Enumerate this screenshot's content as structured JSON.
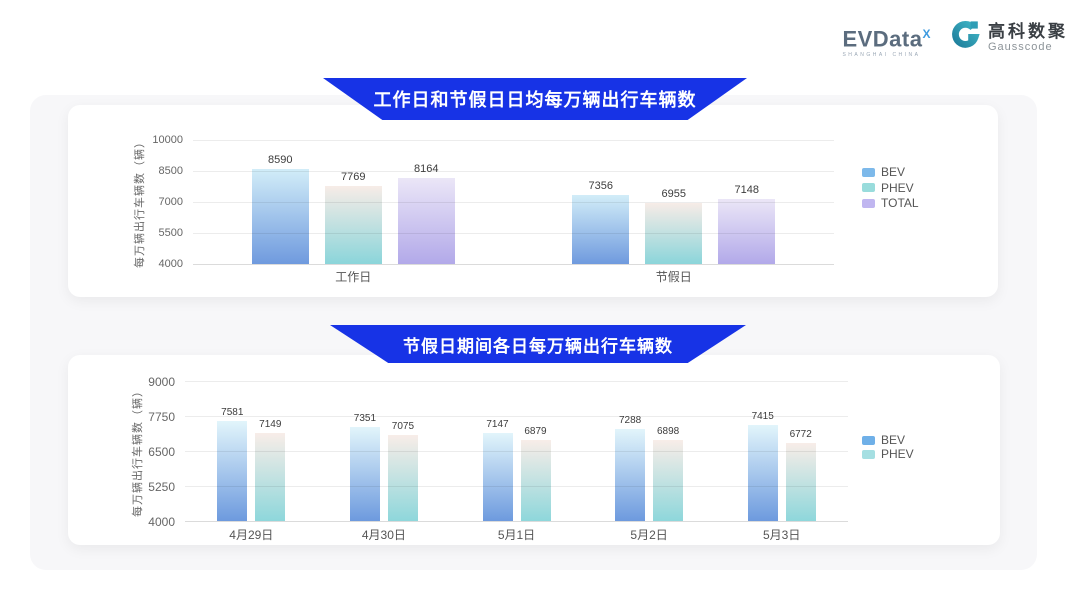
{
  "page": {
    "background": "#ffffff",
    "panel_background": "#f7f7f9",
    "banner_color": "#1733e6"
  },
  "logo": {
    "evdata": {
      "text": "EVData",
      "sup": "X",
      "subtext": "SHANGHAI CHINA"
    },
    "gausscode": {
      "cn": "高科数聚",
      "en": "Gausscode",
      "icon_color": "#2e9db5"
    }
  },
  "chart_data": [
    {
      "type": "bar",
      "title": "工作日和节假日日均每万辆出行车辆数",
      "categories": [
        "工作日",
        "节假日"
      ],
      "series": [
        {
          "name": "BEV",
          "values": [
            8590,
            7356
          ],
          "gradient": [
            "#d2edf8",
            "#6f9ade"
          ],
          "legend_color": "#7db9ea"
        },
        {
          "name": "PHEV",
          "values": [
            7769,
            6955
          ],
          "gradient": [
            "#f7ece7",
            "#8bd5da"
          ],
          "legend_color": "#99dcdc"
        },
        {
          "name": "TOTAL",
          "values": [
            8164,
            7148
          ],
          "gradient": [
            "#ebe6f7",
            "#b2a9e9"
          ],
          "legend_color": "#c0b6f0"
        }
      ],
      "xlabel": "",
      "ylabel": "每万辆出行车辆数（辆）",
      "ylim": [
        4000,
        10000
      ],
      "yticks": [
        4000,
        5500,
        7000,
        8500,
        10000
      ],
      "grid": true,
      "legend_position": "right"
    },
    {
      "type": "bar",
      "title": "节假日期间各日每万辆出行车辆数",
      "categories": [
        "4月29日",
        "4月30日",
        "5月1日",
        "5月2日",
        "5月3日"
      ],
      "series": [
        {
          "name": "BEV",
          "values": [
            7581,
            7351,
            7147,
            7288,
            7415
          ],
          "gradient": [
            "#e2f5fb",
            "#6d9ade"
          ],
          "legend_color": "#6fb0e8"
        },
        {
          "name": "PHEV",
          "values": [
            7149,
            7075,
            6879,
            6898,
            6772
          ],
          "gradient": [
            "#f8ede8",
            "#8ed7db"
          ],
          "legend_color": "#a5dfe2"
        }
      ],
      "xlabel": "",
      "ylabel": "每万辆出行车辆数（辆）",
      "ylim": [
        4000,
        9000
      ],
      "yticks": [
        4000,
        5250,
        6500,
        7750,
        9000
      ],
      "grid": true,
      "legend_position": "right"
    }
  ]
}
